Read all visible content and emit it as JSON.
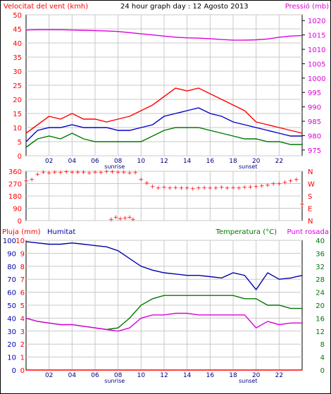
{
  "header": {
    "wind_label": "Velocitat del vent (kmh)",
    "title": "24 hour graph day : 12 Agosto 2013",
    "pressure_label": "Pressió (mb)"
  },
  "lower_labels": {
    "rain": "Pluja (mm)",
    "humidity": "Humitat",
    "temperature": "Temperatura (°C)",
    "dewpoint": "Punt rosada"
  },
  "colors": {
    "wind_gust": "#ff0000",
    "wind_avg": "#0000cc",
    "wind_low": "#007700",
    "pressure": "#dd00dd",
    "direction": "#ff0000",
    "humidity": "#0000aa",
    "temperature": "#007700",
    "dewpoint": "#dd00dd",
    "rain": "#ff0000",
    "grid": "#c8c8c8"
  },
  "chart_data": [
    {
      "type": "line",
      "title": "24 hour graph day : 12 Agosto 2013",
      "xticks": [
        "02",
        "04",
        "06",
        "08",
        "10",
        "12",
        "14",
        "16",
        "18",
        "20",
        "22"
      ],
      "xmarkers": [
        "sunrise",
        "sunset"
      ],
      "left_axis": {
        "label": "Velocitat del vent (kmh)",
        "ticks": [
          "50",
          "45",
          "40",
          "35",
          "30",
          "25",
          "20",
          "15",
          "10",
          "5",
          "0"
        ],
        "ylim": [
          0,
          50
        ]
      },
      "right_axis": {
        "label": "Pressió (mb)",
        "ticks": [
          "1020",
          "1015",
          "1010",
          "1005",
          "1000",
          "995",
          "990",
          "985",
          "980",
          "975"
        ],
        "ylim": [
          973,
          1022
        ]
      },
      "hours": [
        0,
        1,
        2,
        3,
        4,
        5,
        6,
        7,
        8,
        9,
        10,
        11,
        12,
        13,
        14,
        15,
        16,
        17,
        18,
        19,
        20,
        21,
        22,
        23,
        24
      ],
      "series": [
        {
          "name": "gust",
          "axis": "left",
          "values": [
            8,
            11,
            14,
            13,
            15,
            13,
            13,
            12,
            13,
            14,
            16,
            18,
            21,
            24,
            23,
            24,
            22,
            20,
            18,
            16,
            12,
            11,
            10,
            9,
            8
          ]
        },
        {
          "name": "average",
          "axis": "left",
          "values": [
            5,
            9,
            10,
            10,
            11,
            10,
            10,
            10,
            9,
            9,
            10,
            11,
            14,
            15,
            16,
            17,
            15,
            14,
            12,
            11,
            10,
            9,
            8,
            7,
            7
          ]
        },
        {
          "name": "low",
          "axis": "left",
          "values": [
            3,
            6,
            7,
            6,
            8,
            6,
            5,
            5,
            5,
            5,
            5,
            7,
            9,
            10,
            10,
            10,
            9,
            8,
            7,
            6,
            6,
            5,
            5,
            4,
            4
          ]
        },
        {
          "name": "pressure",
          "axis": "right",
          "values": [
            1016.7,
            1016.8,
            1016.8,
            1016.8,
            1016.7,
            1016.6,
            1016.5,
            1016.4,
            1016.2,
            1015.8,
            1015.4,
            1015.0,
            1014.6,
            1014.2,
            1014.0,
            1013.9,
            1013.7,
            1013.4,
            1013.2,
            1013.2,
            1013.3,
            1013.6,
            1014.2,
            1014.6,
            1014.8
          ]
        }
      ]
    },
    {
      "type": "scatter",
      "xticks": [
        "02",
        "04",
        "06",
        "08",
        "10",
        "12",
        "14",
        "16",
        "18",
        "20",
        "22"
      ],
      "left_ticks": [
        "360",
        "270",
        "180",
        "90",
        "0"
      ],
      "right_ticks": [
        "N",
        "W",
        "S",
        "E",
        "N"
      ],
      "ylim": [
        0,
        360
      ],
      "x": [
        0,
        0.5,
        1,
        1.5,
        2,
        2.5,
        3,
        3.5,
        4,
        4.5,
        5,
        5.5,
        6,
        6.5,
        7,
        7.5,
        8,
        8.5,
        9,
        9.5,
        10,
        10.5,
        11,
        11.5,
        12,
        12.5,
        13,
        13.5,
        14,
        14.5,
        15,
        15.5,
        16,
        16.5,
        17,
        17.5,
        18,
        18.5,
        19,
        19.5,
        20,
        20.5,
        21,
        21.5,
        22,
        22.5,
        23,
        23.5,
        24
      ],
      "y": [
        290,
        300,
        340,
        355,
        350,
        355,
        352,
        358,
        355,
        356,
        354,
        350,
        356,
        352,
        360,
        358,
        355,
        356,
        350,
        352,
        300,
        275,
        250,
        240,
        245,
        240,
        242,
        238,
        240,
        235,
        240,
        242,
        238,
        240,
        245,
        240,
        243,
        240,
        245,
        248,
        250,
        255,
        260,
        270,
        270,
        280,
        290,
        300,
        120
      ],
      "extra_points": {
        "x": [
          7.4,
          7.8,
          8.2,
          8.6,
          9.0,
          9.3
        ],
        "y": [
          10,
          25,
          15,
          20,
          25,
          10
        ]
      }
    },
    {
      "type": "line",
      "left_axis": {
        "label": "Pluja (mm)",
        "ticks": [
          "10",
          "9",
          "8",
          "7",
          "6",
          "5",
          "4",
          "3",
          "2",
          "1",
          "0"
        ],
        "ylim": [
          0,
          10
        ]
      },
      "left_axis_2": {
        "label": "Humitat",
        "ticks": [
          "100",
          "90",
          "80",
          "70",
          "60",
          "50",
          "40",
          "30",
          "20",
          "10",
          "0"
        ],
        "ylim": [
          0,
          100
        ]
      },
      "right_axis": {
        "label": "Temperatura (°C)",
        "ticks": [
          "40",
          "36",
          "32",
          "28",
          "24",
          "20",
          "16",
          "12",
          "8",
          "4",
          "0"
        ],
        "ylim": [
          0,
          40
        ]
      },
      "hours": [
        0,
        1,
        2,
        3,
        4,
        5,
        6,
        7,
        8,
        9,
        10,
        11,
        12,
        13,
        14,
        15,
        16,
        17,
        18,
        19,
        20,
        21,
        22,
        23,
        24
      ],
      "series": [
        {
          "name": "Humitat",
          "axis": "left2",
          "values": [
            99,
            98,
            97,
            97,
            98,
            97,
            96,
            95,
            92,
            86,
            80,
            77,
            75,
            74,
            73,
            73,
            72,
            71,
            75,
            73,
            62,
            75,
            70,
            71,
            73
          ]
        },
        {
          "name": "Temperatura (°C)",
          "axis": "right",
          "values": [
            16,
            15,
            14.5,
            14,
            14,
            13.5,
            13,
            12.5,
            13,
            16,
            20,
            22,
            23,
            23,
            23,
            23,
            23,
            23,
            23,
            22,
            22,
            20,
            20,
            19,
            19
          ]
        },
        {
          "name": "Punt rosada",
          "axis": "right",
          "values": [
            16,
            15,
            14.5,
            14,
            14,
            13.5,
            13,
            12.5,
            12,
            13,
            16,
            17,
            17,
            17.5,
            17.5,
            17,
            17,
            17,
            17,
            17,
            13,
            15,
            14,
            14.5,
            14.5
          ]
        },
        {
          "name": "Pluja (mm)",
          "axis": "left",
          "values": [
            0,
            0,
            0,
            0,
            0,
            0,
            0,
            0,
            0,
            0,
            0,
            0,
            0,
            0,
            0,
            0,
            0,
            0,
            0,
            0,
            0,
            0,
            0,
            0,
            0
          ]
        }
      ]
    }
  ]
}
